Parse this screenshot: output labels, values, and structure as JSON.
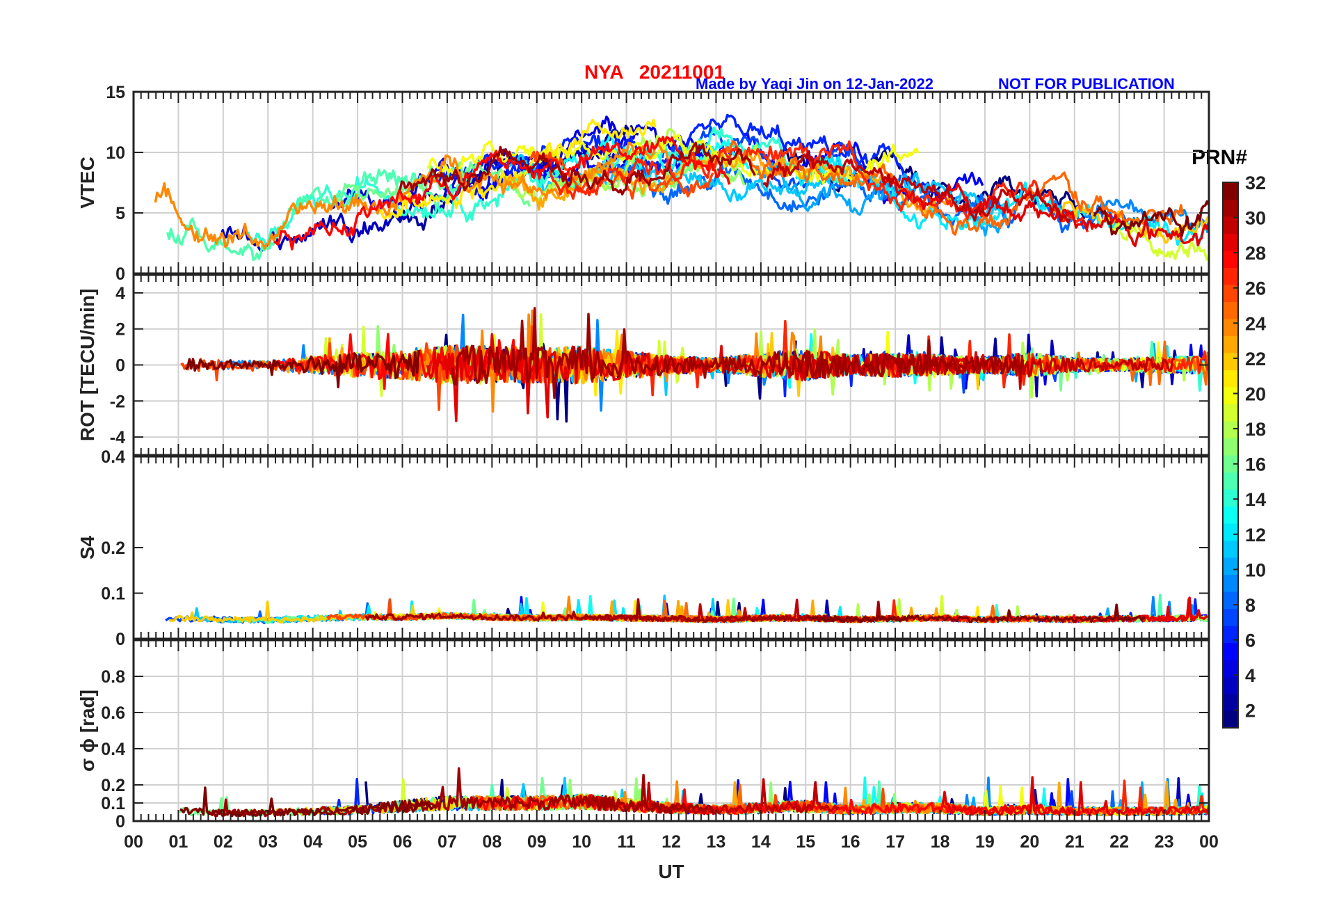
{
  "header": {
    "title": "NYA   20211001",
    "credit": "Made by Yaqi Jin on 12-Jan-2022",
    "notice": "NOT FOR PUBLICATION"
  },
  "colorbar": {
    "title": "PRN#",
    "ticks": [
      "2",
      "4",
      "6",
      "8",
      "10",
      "12",
      "14",
      "16",
      "18",
      "20",
      "22",
      "24",
      "26",
      "28",
      "30",
      "32"
    ],
    "colormap": "jet",
    "range": [
      1,
      32
    ]
  },
  "chart_data": [
    {
      "type": "line",
      "panel": "VTEC",
      "ylabel": "VTEC",
      "ylim": [
        0,
        15
      ],
      "yticks": [
        "0",
        "5",
        "10",
        "15"
      ],
      "xlim": [
        0,
        24
      ],
      "grid": true,
      "envelope": {
        "hours": [
          0,
          1,
          2,
          3,
          4,
          5,
          6,
          7,
          8,
          9,
          10,
          11,
          12,
          13,
          14,
          15,
          16,
          17,
          18,
          19,
          20,
          21,
          22,
          23,
          24
        ],
        "mean": [
          4.8,
          4.2,
          3.6,
          3.4,
          4.3,
          5.4,
          6.3,
          8.0,
          9.0,
          8.6,
          9.3,
          9.3,
          9.5,
          9.1,
          8.8,
          8.3,
          8.6,
          7.6,
          5.9,
          4.8,
          5.6,
          4.7,
          3.6,
          3.3,
          4.0
        ]
      }
    },
    {
      "type": "line",
      "panel": "ROT",
      "ylabel": "ROT [TECU/min]",
      "ylim": [
        -5,
        5
      ],
      "yticks": [
        "-4",
        "-2",
        "0",
        "2",
        "4"
      ],
      "xlim": [
        0,
        24
      ],
      "grid": true,
      "envelope": {
        "hours": [
          0,
          1,
          2,
          3,
          4,
          5,
          6,
          7,
          8,
          9,
          10,
          11,
          12,
          13,
          14,
          15,
          16,
          17,
          18,
          19,
          20,
          21,
          22,
          23,
          24
        ],
        "spread": [
          0.8,
          0.7,
          0.5,
          0.4,
          0.9,
          1.2,
          1.4,
          2.0,
          1.9,
          1.8,
          1.9,
          1.4,
          0.9,
          0.7,
          1.2,
          1.6,
          1.0,
          1.2,
          1.0,
          0.8,
          1.2,
          0.7,
          0.6,
          0.8,
          0.9
        ]
      }
    },
    {
      "type": "line",
      "panel": "S4",
      "ylabel": "S4",
      "ylim": [
        0,
        0.4
      ],
      "yticks": [
        "0",
        "0.1",
        "0.2",
        "0.4"
      ],
      "xlim": [
        0,
        24
      ],
      "grid": false,
      "envelope": {
        "hours": [
          0,
          1,
          2,
          3,
          4,
          5,
          6,
          7,
          8,
          9,
          10,
          11,
          12,
          13,
          14,
          15,
          16,
          17,
          18,
          19,
          20,
          21,
          22,
          23,
          24
        ],
        "mean": [
          0.045,
          0.042,
          0.04,
          0.038,
          0.042,
          0.045,
          0.045,
          0.048,
          0.045,
          0.043,
          0.045,
          0.043,
          0.042,
          0.04,
          0.043,
          0.043,
          0.04,
          0.042,
          0.043,
          0.04,
          0.042,
          0.04,
          0.042,
          0.042,
          0.043
        ]
      }
    },
    {
      "type": "line",
      "panel": "sigma_phi",
      "ylabel": "σ ϕ [rad]",
      "ylim": [
        0,
        1
      ],
      "yticks": [
        "0",
        "0.1",
        "0.2",
        "0.4",
        "0.6",
        "0.8"
      ],
      "xlim": [
        0,
        24
      ],
      "grid": true,
      "envelope": {
        "hours": [
          0,
          1,
          2,
          3,
          4,
          5,
          6,
          7,
          8,
          9,
          10,
          11,
          12,
          13,
          14,
          15,
          16,
          17,
          18,
          19,
          20,
          21,
          22,
          23,
          24
        ],
        "mean": [
          0.07,
          0.06,
          0.05,
          0.05,
          0.06,
          0.07,
          0.09,
          0.11,
          0.11,
          0.11,
          0.12,
          0.1,
          0.08,
          0.07,
          0.08,
          0.09,
          0.07,
          0.08,
          0.08,
          0.06,
          0.07,
          0.06,
          0.06,
          0.06,
          0.07
        ]
      }
    }
  ],
  "xaxis": {
    "label": "UT",
    "ticks": [
      "00",
      "01",
      "02",
      "03",
      "04",
      "05",
      "06",
      "07",
      "08",
      "09",
      "10",
      "11",
      "12",
      "13",
      "14",
      "15",
      "16",
      "17",
      "18",
      "19",
      "20",
      "21",
      "22",
      "23",
      "00"
    ]
  }
}
